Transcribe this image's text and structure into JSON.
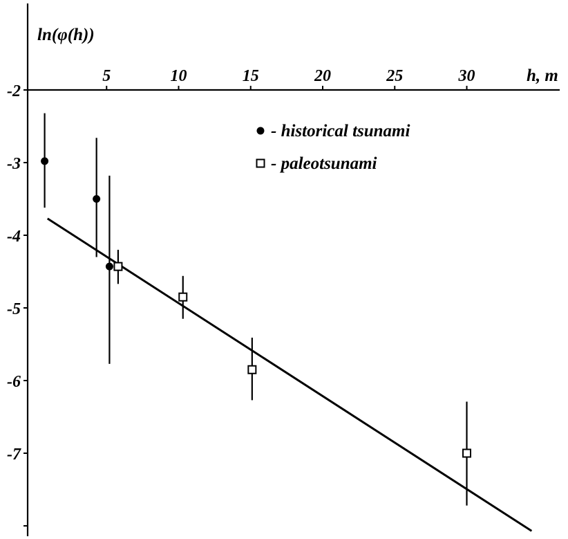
{
  "chart_data": {
    "type": "scatter",
    "title": "",
    "ylabel": "ln(φ(h))",
    "xlabel": "h, m",
    "xlim": [
      -1,
      35.5
    ],
    "ylim": [
      -8.1,
      -1.25
    ],
    "x_ticks": [
      {
        "value": 5,
        "label": "5"
      },
      {
        "value": 10,
        "label": "10"
      },
      {
        "value": 15,
        "label": "15"
      },
      {
        "value": 20,
        "label": "20"
      },
      {
        "value": 25,
        "label": "25"
      },
      {
        "value": 30,
        "label": "30"
      }
    ],
    "y_ticks": [
      {
        "value": -2,
        "label": "-2"
      },
      {
        "value": -3,
        "label": "-3"
      },
      {
        "value": -4,
        "label": "-4"
      },
      {
        "value": -5,
        "label": "-5"
      },
      {
        "value": -6,
        "label": "-6"
      },
      {
        "value": -7,
        "label": "-7"
      },
      {
        "value": -8,
        "label": ""
      }
    ],
    "series": [
      {
        "name": "- historical tsunami",
        "marker": "filled-circle",
        "color": "#000000",
        "points": [
          {
            "x": 0.7,
            "y": -2.98,
            "err_low": -3.62,
            "err_high": -2.32
          },
          {
            "x": 4.3,
            "y": -3.5,
            "err_low": -4.3,
            "err_high": -2.66
          },
          {
            "x": 5.2,
            "y": -4.43,
            "err_low": -5.77,
            "err_high": -3.18
          }
        ]
      },
      {
        "name": "- paleotsunami",
        "marker": "open-square",
        "color": "#000000",
        "points": [
          {
            "x": 5.8,
            "y": -4.43,
            "err_low": -4.67,
            "err_high": -4.2
          },
          {
            "x": 10.3,
            "y": -4.85,
            "err_low": -5.15,
            "err_high": -4.56
          },
          {
            "x": 15.1,
            "y": -5.85,
            "err_low": -6.27,
            "err_high": -5.41
          },
          {
            "x": 30.0,
            "y": -7.0,
            "err_low": -7.72,
            "err_high": -6.29
          }
        ]
      }
    ],
    "fit_line": {
      "x1": 0.9,
      "y1": -3.77,
      "x2": 34.5,
      "y2": -8.07
    },
    "legend_position": "top-right"
  }
}
